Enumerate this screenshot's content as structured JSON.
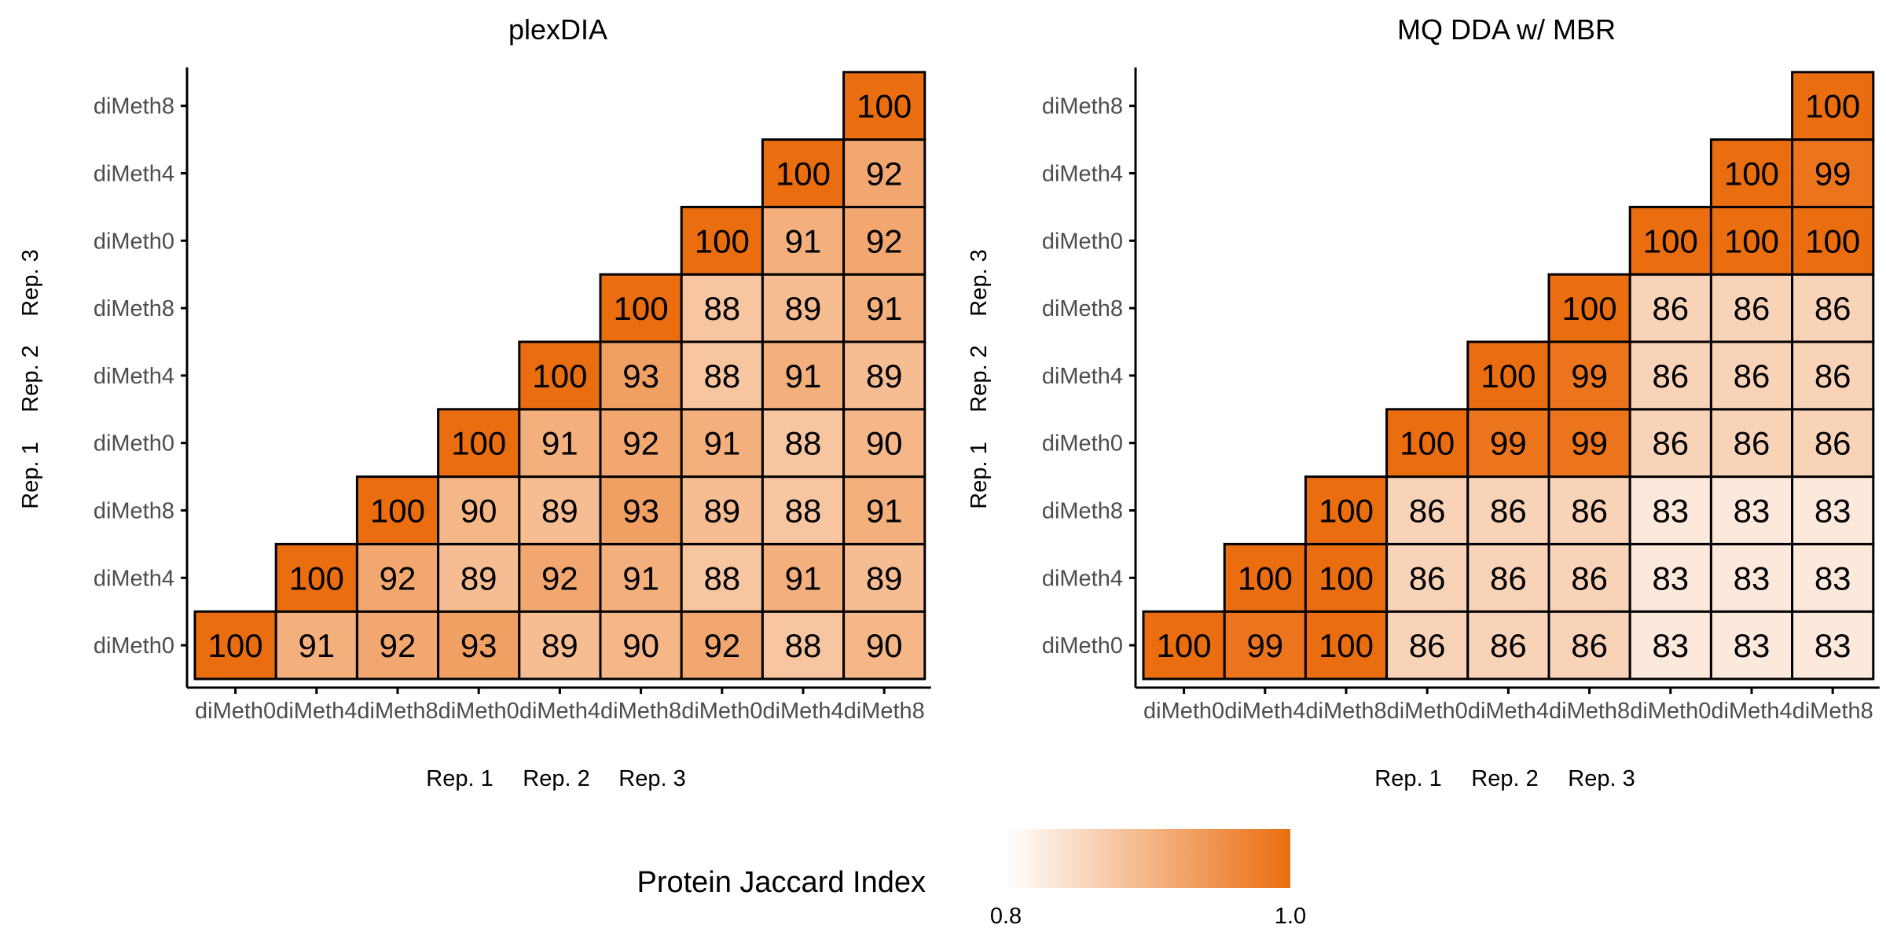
{
  "colors": {
    "low": "#ffffff",
    "high": "#ea6d10",
    "border": "#000000",
    "axis": "#000000",
    "tick_text": "#4d4d4d",
    "text": "#000000"
  },
  "chart_data": [
    {
      "type": "heatmap",
      "title": "plexDIA",
      "x_tick_labels": [
        "diMeth0",
        "diMeth4",
        "diMeth8",
        "diMeth0",
        "diMeth4",
        "diMeth8",
        "diMeth0",
        "diMeth4",
        "diMeth8"
      ],
      "y_tick_labels": [
        "diMeth0",
        "diMeth4",
        "diMeth8",
        "diMeth0",
        "diMeth4",
        "diMeth8",
        "diMeth0",
        "diMeth4",
        "diMeth8"
      ],
      "x_group_labels": [
        "Rep. 1",
        "Rep. 2",
        "Rep. 3"
      ],
      "y_group_labels": [
        "Rep. 1",
        "Rep. 2",
        "Rep. 3"
      ],
      "rows": [
        [
          100,
          91,
          92,
          93,
          89,
          90,
          92,
          88,
          90
        ],
        [
          null,
          100,
          92,
          89,
          92,
          91,
          88,
          91,
          89
        ],
        [
          null,
          null,
          100,
          90,
          89,
          93,
          89,
          88,
          91
        ],
        [
          null,
          null,
          null,
          100,
          91,
          92,
          91,
          88,
          90
        ],
        [
          null,
          null,
          null,
          null,
          100,
          93,
          88,
          91,
          89
        ],
        [
          null,
          null,
          null,
          null,
          null,
          100,
          88,
          89,
          91
        ],
        [
          null,
          null,
          null,
          null,
          null,
          null,
          100,
          91,
          92
        ],
        [
          null,
          null,
          null,
          null,
          null,
          null,
          null,
          100,
          92
        ],
        [
          null,
          null,
          null,
          null,
          null,
          null,
          null,
          null,
          100
        ]
      ]
    },
    {
      "type": "heatmap",
      "title": "MQ DDA w/ MBR",
      "x_tick_labels": [
        "diMeth0",
        "diMeth4",
        "diMeth8",
        "diMeth0",
        "diMeth4",
        "diMeth8",
        "diMeth0",
        "diMeth4",
        "diMeth8"
      ],
      "y_tick_labels": [
        "diMeth0",
        "diMeth4",
        "diMeth8",
        "diMeth0",
        "diMeth4",
        "diMeth8",
        "diMeth0",
        "diMeth4",
        "diMeth8"
      ],
      "x_group_labels": [
        "Rep. 1",
        "Rep. 2",
        "Rep. 3"
      ],
      "y_group_labels": [
        "Rep. 1",
        "Rep. 2",
        "Rep. 3"
      ],
      "rows": [
        [
          100,
          99,
          100,
          86,
          86,
          86,
          83,
          83,
          83
        ],
        [
          null,
          100,
          100,
          86,
          86,
          86,
          83,
          83,
          83
        ],
        [
          null,
          null,
          100,
          86,
          86,
          86,
          83,
          83,
          83
        ],
        [
          null,
          null,
          null,
          100,
          99,
          99,
          86,
          86,
          86
        ],
        [
          null,
          null,
          null,
          null,
          100,
          99,
          86,
          86,
          86
        ],
        [
          null,
          null,
          null,
          null,
          null,
          100,
          86,
          86,
          86
        ],
        [
          null,
          null,
          null,
          null,
          null,
          null,
          100,
          100,
          100
        ],
        [
          null,
          null,
          null,
          null,
          null,
          null,
          null,
          100,
          99
        ],
        [
          null,
          null,
          null,
          null,
          null,
          null,
          null,
          null,
          100
        ]
      ]
    }
  ],
  "legend": {
    "title": "Protein Jaccard Index",
    "min_label": "0.8",
    "max_label": "1.0",
    "min": 0.8,
    "max": 1.0
  }
}
